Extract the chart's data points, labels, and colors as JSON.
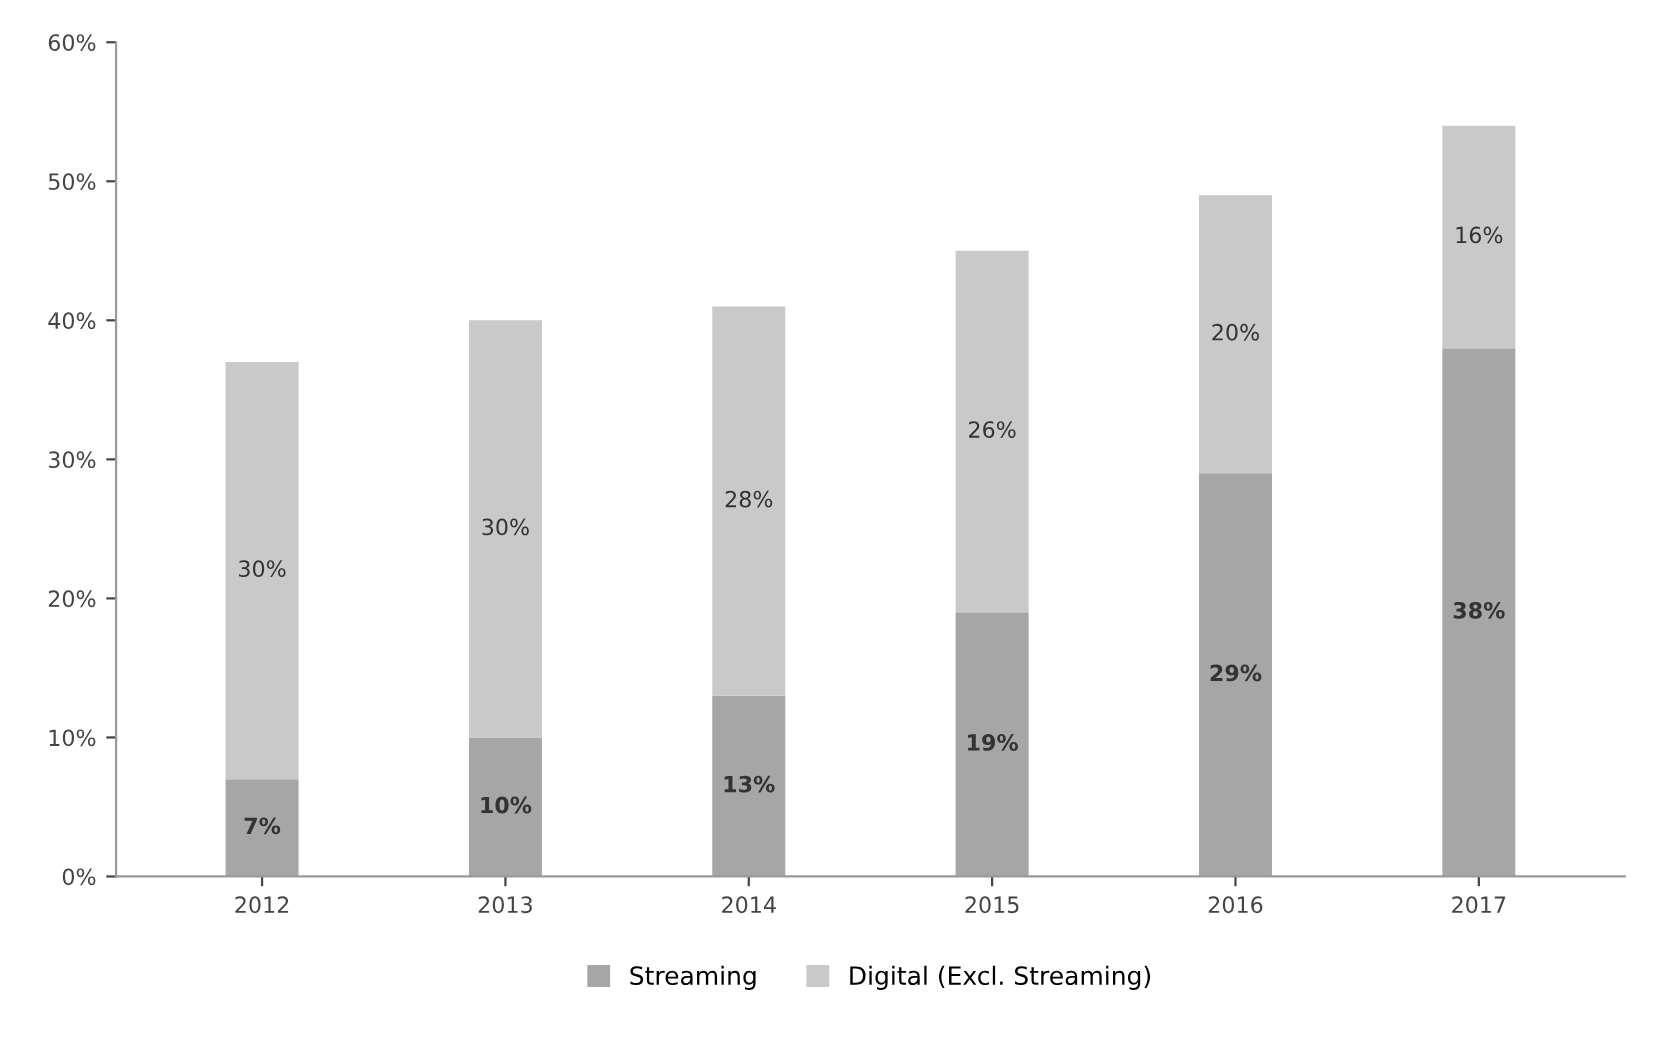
{
  "chart_data": {
    "type": "bar",
    "stacked": true,
    "categories": [
      "2012",
      "2013",
      "2014",
      "2015",
      "2016",
      "2017"
    ],
    "series": [
      {
        "name": "Streaming",
        "color": "#a6a6a6",
        "values": [
          7,
          10,
          13,
          19,
          29,
          38
        ],
        "value_labels": [
          "7%",
          "10%",
          "13%",
          "19%",
          "29%",
          "38%"
        ]
      },
      {
        "name": "Digital (Excl. Streaming)",
        "color": "#c9c9c9",
        "values": [
          30,
          30,
          28,
          26,
          20,
          16
        ],
        "value_labels": [
          "30%",
          "30%",
          "28%",
          "26%",
          "20%",
          "16%"
        ]
      }
    ],
    "ylim": [
      0,
      60
    ],
    "yticks": [
      {
        "value": 0,
        "label": "0%"
      },
      {
        "value": 10,
        "label": "10%"
      },
      {
        "value": 20,
        "label": "20%"
      },
      {
        "value": 30,
        "label": "30%"
      },
      {
        "value": 40,
        "label": "40%"
      },
      {
        "value": 50,
        "label": "50%"
      },
      {
        "value": 60,
        "label": "60%"
      }
    ],
    "grid": false,
    "legend": "bottom"
  }
}
